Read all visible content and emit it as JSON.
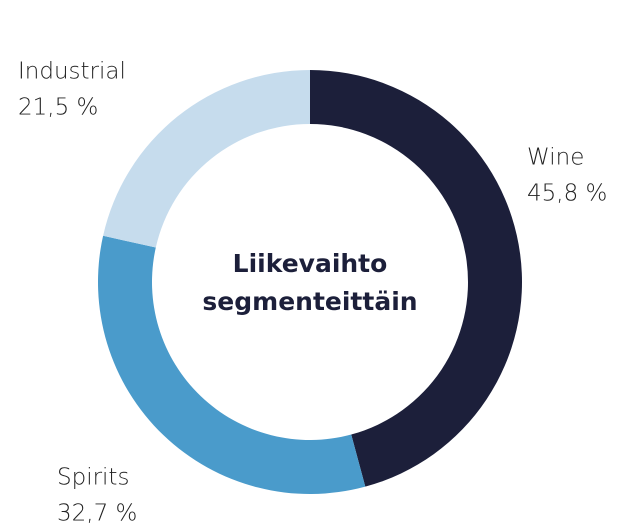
{
  "chart_data": {
    "type": "donut",
    "title": "Liikevaihto segmenteittäin",
    "categories": [
      "Wine",
      "Spirits",
      "Industrial"
    ],
    "values": [
      45.8,
      32.7,
      21.5
    ],
    "value_labels": [
      "45,8 %",
      "32,7 %",
      "21,5 %"
    ],
    "colors": [
      "#1c1f3a",
      "#4a9bcb",
      "#c6dced"
    ]
  }
}
